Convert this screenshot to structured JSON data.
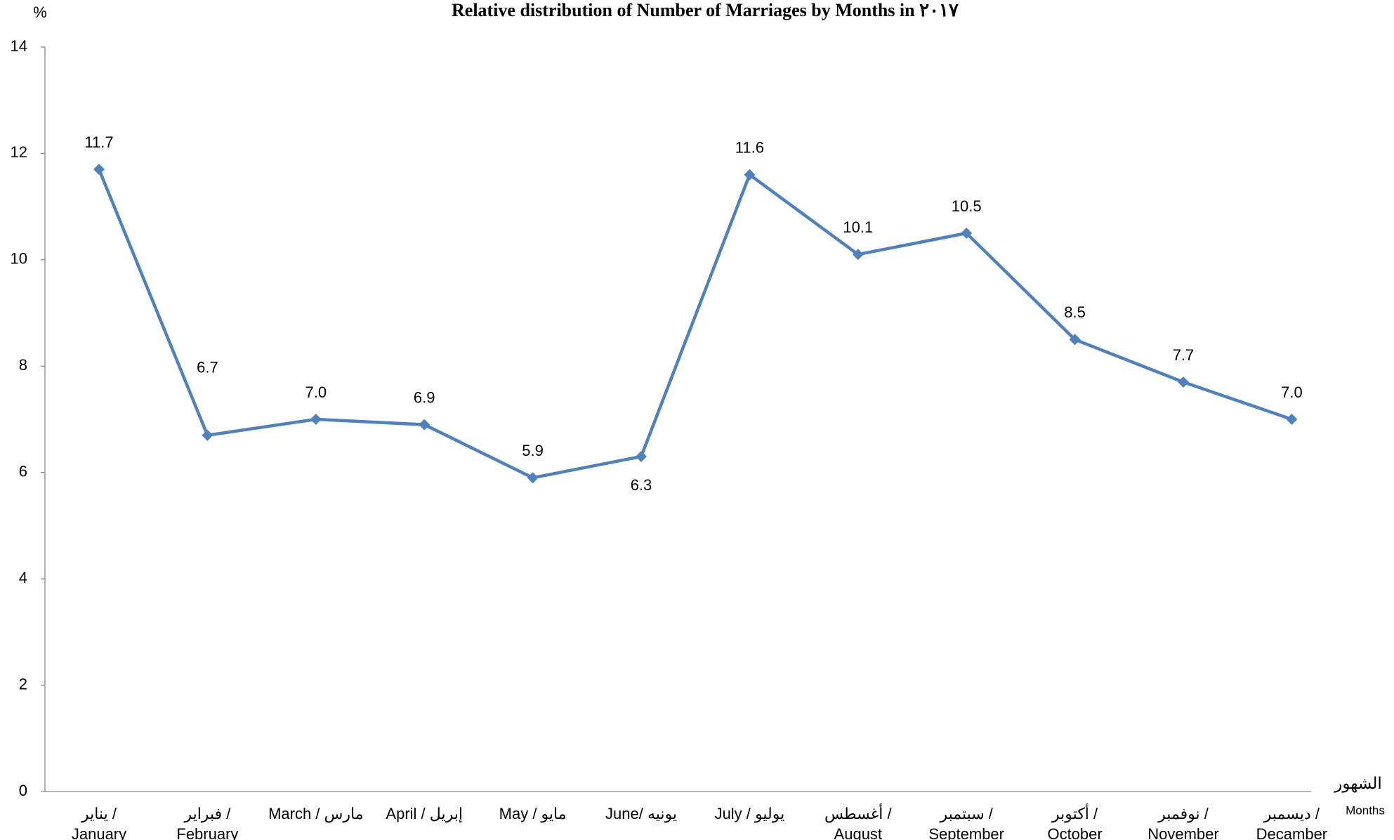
{
  "chart_data": {
    "type": "line",
    "title": "Relative  distribution of Number of Marriages by Months in ٢٠١٧",
    "y_label": "%",
    "x_label": "الشهور",
    "x_label_en": "Months",
    "categories": [
      "يناير  /\nJanuary",
      "فبراير  /\nFebruary",
      "March /  مارس",
      "April /  إبريل",
      "May / مايو",
      "June/ يونيه",
      "July  /  يوليو",
      "أغسطس  /\nAugust",
      "سبتمبر /\nSeptember",
      "أكتوبر  /\nOctober",
      "نوفمبر  /\nNovember",
      "ديسمبر  /\nDecamber"
    ],
    "series": [
      {
        "name": "Relative distribution",
        "color": "#4f81bd",
        "values": [
          11.7,
          6.7,
          7,
          6.9,
          5.9,
          6.3,
          11.6,
          10.1,
          10.5,
          8.5,
          7.7,
          7
        ],
        "value_labels": [
          "11.7",
          "6.7",
          "7.0",
          "6.9",
          "5.9",
          "6.3",
          "11.6",
          "10.1",
          "10.5",
          "8.5",
          "7.7",
          "7.0"
        ]
      }
    ],
    "ylim": [
      0,
      14
    ],
    "yticks": [
      0,
      2,
      4,
      6,
      8,
      10,
      12,
      14
    ],
    "grid": false
  }
}
